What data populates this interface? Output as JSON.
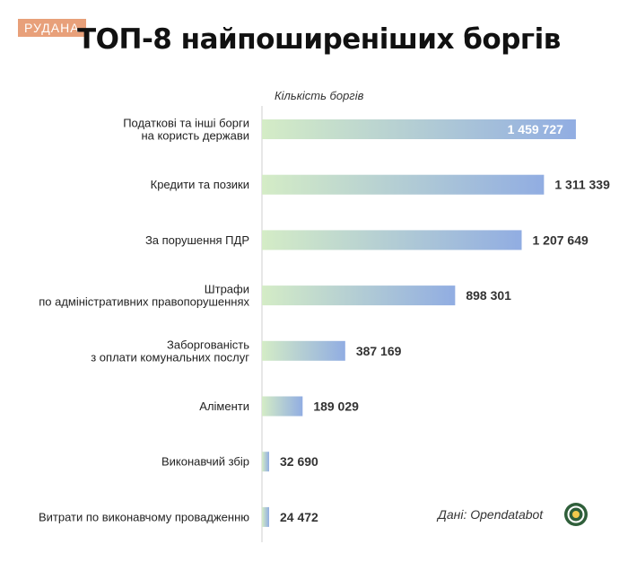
{
  "badge": "РУДАНА",
  "title": "ТОП-8 найпоширеніших боргів",
  "source": "Дані: Opendatabot",
  "chart_data": {
    "type": "bar",
    "orientation": "horizontal",
    "title": "ТОП-8 найпоширеніших боргів",
    "xlabel": "Кількість боргів",
    "categories": [
      [
        "Податкові та інші борги",
        "на користь держави"
      ],
      [
        "Кредити та позики"
      ],
      [
        "За порушення ПДР"
      ],
      [
        "Штрафи",
        "по адміністративних правопорушеннях"
      ],
      [
        "Заборгованість",
        "з оплати комунальних послуг"
      ],
      [
        "Аліменти"
      ],
      [
        "Виконавчий збір"
      ],
      [
        "Витрати по виконавчому провадженню"
      ]
    ],
    "values": [
      1459727,
      1311339,
      1207649,
      898301,
      387169,
      189029,
      32690,
      24472
    ],
    "value_labels": [
      "1 459 727",
      "1 311 339",
      "1 207 649",
      "898 301",
      "387 169",
      "189 029",
      "32 690",
      "24 472"
    ],
    "xlim": [
      0,
      1460000
    ],
    "grid": false,
    "legend": "none",
    "colors": {
      "gradient_start": "#d4ecc6",
      "gradient_end": "#91ade2",
      "axis": "#cfcfcf",
      "value_inside": "#ffffff",
      "value_outside": "#333333"
    }
  }
}
